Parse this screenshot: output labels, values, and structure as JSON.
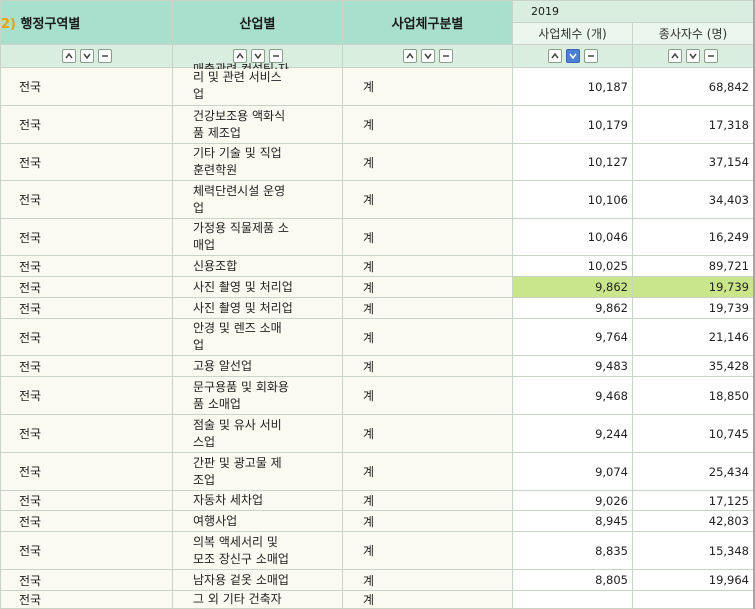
{
  "headers": {
    "region_prefix": "2)",
    "region": "행정구역별",
    "industry": "산업별",
    "kind": "사업체구분별",
    "year": "2019",
    "businesses": "사업체수 (개)",
    "workers": "종사자수 (명)"
  },
  "rows": [
    {
      "region": "전국",
      "industry": "리 및 관련 서비스\n업",
      "kind": "계",
      "businesses": "10,187",
      "workers": "68,842",
      "height": 38,
      "partial_top": "매출관련 컨설팅·자"
    },
    {
      "region": "전국",
      "industry": "건강보조용 액화식\n품 제조업",
      "kind": "계",
      "businesses": "10,179",
      "workers": "17,318",
      "height": 38
    },
    {
      "region": "전국",
      "industry": "기타 기술 및 직업\n훈련학원",
      "kind": "계",
      "businesses": "10,127",
      "workers": "37,154",
      "height": 37
    },
    {
      "region": "전국",
      "industry": "체력단련시설 운영\n업",
      "kind": "계",
      "businesses": "10,106",
      "workers": "34,403",
      "height": 38
    },
    {
      "region": "전국",
      "industry": "가정용 직물제품 소\n매업",
      "kind": "계",
      "businesses": "10,046",
      "workers": "16,249",
      "height": 37
    },
    {
      "region": "전국",
      "industry": "신용조합",
      "kind": "계",
      "businesses": "10,025",
      "workers": "89,721",
      "height": 21
    },
    {
      "region": "전국",
      "industry": "사진 촬영 및 처리업",
      "kind": "계",
      "businesses": "9,862",
      "workers": "19,739",
      "height": 21,
      "highlight": true
    },
    {
      "region": "전국",
      "industry": "사진 촬영 및 처리업",
      "kind": "계",
      "businesses": "9,862",
      "workers": "19,739",
      "height": 21
    },
    {
      "region": "전국",
      "industry": "안경 및 렌즈 소매\n업",
      "kind": "계",
      "businesses": "9,764",
      "workers": "21,146",
      "height": 37
    },
    {
      "region": "전국",
      "industry": "고용 알선업",
      "kind": "계",
      "businesses": "9,483",
      "workers": "35,428",
      "height": 21
    },
    {
      "region": "전국",
      "industry": "문구용품 및 회화용\n품 소매업",
      "kind": "계",
      "businesses": "9,468",
      "workers": "18,850",
      "height": 38
    },
    {
      "region": "전국",
      "industry": "점술 및 유사 서비\n스업",
      "kind": "계",
      "businesses": "9,244",
      "workers": "10,745",
      "height": 38
    },
    {
      "region": "전국",
      "industry": "간판 및 광고물 제\n조업",
      "kind": "계",
      "businesses": "9,074",
      "workers": "25,434",
      "height": 38
    },
    {
      "region": "전국",
      "industry": "자동차 세차업",
      "kind": "계",
      "businesses": "9,026",
      "workers": "17,125",
      "height": 20
    },
    {
      "region": "전국",
      "industry": "여행사업",
      "kind": "계",
      "businesses": "8,945",
      "workers": "42,803",
      "height": 21
    },
    {
      "region": "전국",
      "industry": "의복 액세서리 및\n모조 장신구 소매업",
      "kind": "계",
      "businesses": "8,835",
      "workers": "15,348",
      "height": 38
    },
    {
      "region": "전국",
      "industry": "남자용 겉옷 소매업",
      "kind": "계",
      "businesses": "8,805",
      "workers": "19,964",
      "height": 21
    },
    {
      "region": "전국",
      "industry": "그 외 기타 건축자",
      "kind": "계",
      "businesses": "",
      "workers": "",
      "height": 18
    }
  ]
}
